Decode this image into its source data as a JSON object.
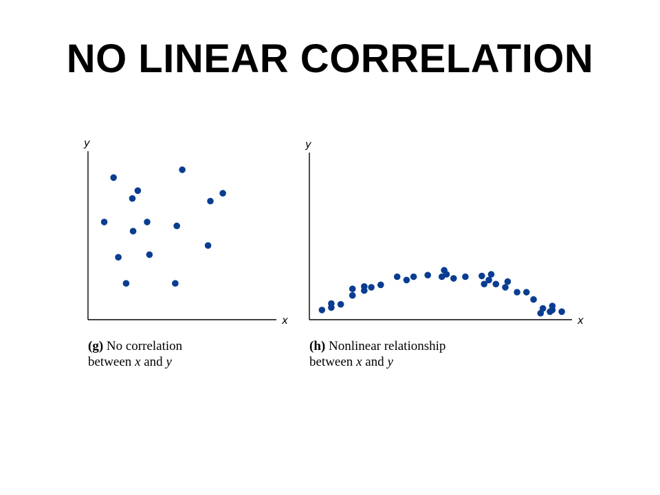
{
  "title": "NO LINEAR CORRELATION",
  "chart_data": [
    {
      "type": "scatter",
      "panel": "g",
      "caption_tag": "(g)",
      "caption_line1": "No correlation",
      "caption_line2_pre": "between",
      "caption_var1": "x",
      "caption_and": "and",
      "caption_var2": "y",
      "xlabel": "x",
      "ylabel": "y",
      "xlim": [
        0,
        100
      ],
      "ylim": [
        0,
        100
      ],
      "ticks": false,
      "grid": false,
      "point_color": "#0a3d91",
      "points": [
        {
          "x": 6,
          "y": 59
        },
        {
          "x": 12,
          "y": 93
        },
        {
          "x": 15,
          "y": 32
        },
        {
          "x": 20,
          "y": 12
        },
        {
          "x": 24,
          "y": 77
        },
        {
          "x": 24.5,
          "y": 52
        },
        {
          "x": 27.5,
          "y": 83
        },
        {
          "x": 33.5,
          "y": 59
        },
        {
          "x": 35,
          "y": 34
        },
        {
          "x": 51.5,
          "y": 12
        },
        {
          "x": 52.5,
          "y": 56
        },
        {
          "x": 56,
          "y": 99
        },
        {
          "x": 72.5,
          "y": 41
        },
        {
          "x": 74,
          "y": 75
        },
        {
          "x": 82,
          "y": 81
        }
      ]
    },
    {
      "type": "scatter",
      "panel": "h",
      "caption_tag": "(h)",
      "caption_line1": "Nonlinear relationship",
      "caption_line2_pre": "between",
      "caption_var1": "x",
      "caption_and": "and",
      "caption_var2": "y",
      "xlabel": "x",
      "ylabel": "y",
      "xlim": [
        0,
        100
      ],
      "ylim": [
        0,
        100
      ],
      "ticks": false,
      "grid": false,
      "point_color": "#0a3d91",
      "points": [
        {
          "x": 3,
          "y": 6
        },
        {
          "x": 7,
          "y": 9
        },
        {
          "x": 7,
          "y": 14
        },
        {
          "x": 11,
          "y": 13
        },
        {
          "x": 16,
          "y": 24
        },
        {
          "x": 16,
          "y": 32
        },
        {
          "x": 21,
          "y": 30
        },
        {
          "x": 21,
          "y": 35
        },
        {
          "x": 24,
          "y": 34
        },
        {
          "x": 28,
          "y": 37
        },
        {
          "x": 35,
          "y": 47
        },
        {
          "x": 39,
          "y": 43
        },
        {
          "x": 42,
          "y": 47
        },
        {
          "x": 48,
          "y": 49
        },
        {
          "x": 54,
          "y": 47
        },
        {
          "x": 55,
          "y": 55
        },
        {
          "x": 56,
          "y": 50
        },
        {
          "x": 59,
          "y": 45
        },
        {
          "x": 64,
          "y": 47
        },
        {
          "x": 71,
          "y": 48
        },
        {
          "x": 72,
          "y": 38
        },
        {
          "x": 74,
          "y": 43
        },
        {
          "x": 75,
          "y": 50
        },
        {
          "x": 77,
          "y": 38
        },
        {
          "x": 81,
          "y": 34
        },
        {
          "x": 82,
          "y": 41
        },
        {
          "x": 86,
          "y": 28
        },
        {
          "x": 90,
          "y": 28
        },
        {
          "x": 93,
          "y": 19
        },
        {
          "x": 96,
          "y": 2
        },
        {
          "x": 97,
          "y": 8
        },
        {
          "x": 100,
          "y": 4
        },
        {
          "x": 101,
          "y": 11
        },
        {
          "x": 101,
          "y": 6
        },
        {
          "x": 105,
          "y": 4
        }
      ]
    }
  ]
}
